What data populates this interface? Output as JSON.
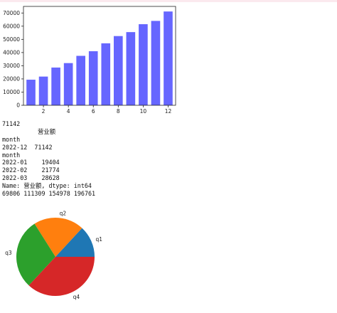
{
  "colors": {
    "bar": "#6666ff",
    "pie": [
      "#1f77b4",
      "#ff7f0e",
      "#2ca02c",
      "#d62728"
    ]
  },
  "chart_data": [
    {
      "type": "bar",
      "title": "",
      "xlabel": "",
      "ylabel": "",
      "x": [
        1,
        2,
        3,
        4,
        5,
        6,
        7,
        8,
        9,
        10,
        11,
        12
      ],
      "values": [
        19404,
        21774,
        28628,
        32000,
        37500,
        41000,
        47000,
        52500,
        55500,
        61500,
        64000,
        71142
      ],
      "xticks": [
        2,
        4,
        6,
        8,
        10,
        12
      ],
      "yticks": [
        0,
        10000,
        20000,
        30000,
        40000,
        50000,
        60000,
        70000
      ],
      "ylim": [
        0,
        75000
      ],
      "xlim": [
        0.4,
        12.6
      ],
      "grid": false,
      "legend": "none"
    },
    {
      "type": "pie",
      "labels": [
        "q1",
        "q2",
        "q3",
        "q4"
      ],
      "values": [
        69806,
        111309,
        154978,
        196761
      ],
      "start_angle_deg": 0,
      "direction": "counterclockwise"
    }
  ],
  "output": {
    "line1": "71142",
    "series_name": "营业额",
    "line3": "month",
    "line4": "2022-12  71142",
    "line5": "month",
    "line6": "2022-01    19404",
    "line7": "2022-02    21774",
    "line8": "2022-03    28628",
    "line9": "Name: 营业额, dtype: int64",
    "line10": "69806 111309 154978 196761"
  }
}
